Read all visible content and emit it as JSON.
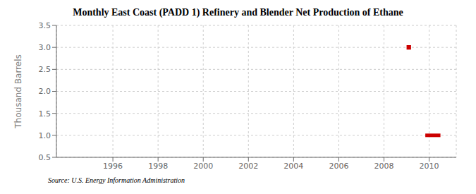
{
  "chart_data": {
    "type": "line",
    "title": "Monthly East Coast (PADD 1) Refinery and Blender Net Production of Ethane",
    "ylabel": "Thousand Barrels",
    "annotations": [
      "Source: U.S. Energy Information Administration"
    ],
    "xlim": [
      1993.5,
      2011.2
    ],
    "xticks": [
      1996,
      1998,
      2000,
      2002,
      2004,
      2006,
      2008,
      2010
    ],
    "ylim": [
      0.5,
      3.5
    ],
    "yticks": [
      0.5,
      {
        "value": 1.0,
        "label": "1.0"
      },
      1.5,
      {
        "value": 2.0,
        "label": "2.0"
      },
      2.5,
      {
        "value": 3.0,
        "label": "3.0"
      },
      3.5
    ],
    "grid": true,
    "series": [
      {
        "type": "scatter",
        "marker": "square",
        "color": "#cc0000",
        "x": [
          2009.1
        ],
        "values": [
          3.0
        ]
      },
      {
        "type": "line",
        "line_style": "solid",
        "color": "#cc0000",
        "x": [
          2009.83,
          2010.5
        ],
        "values": [
          1.0,
          1.0
        ]
      }
    ]
  }
}
